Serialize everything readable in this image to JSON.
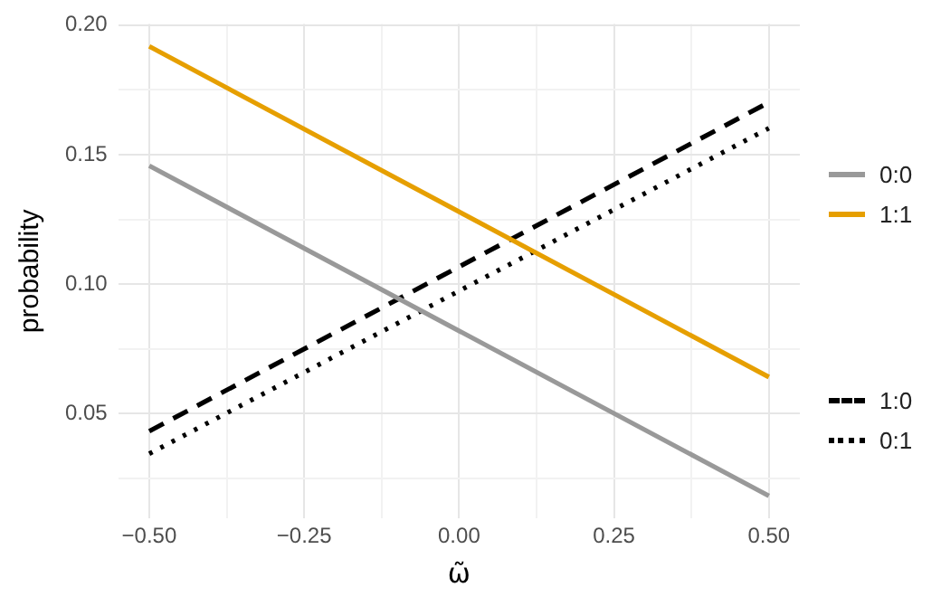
{
  "chart_data": {
    "type": "line",
    "xlabel": "ω̃",
    "ylabel": "probability",
    "xlim": [
      -0.55,
      0.55
    ],
    "ylim": [
      0.0095,
      0.2005
    ],
    "xticks": [
      {
        "value": -0.5,
        "label": "−0.50"
      },
      {
        "value": -0.375,
        "label": null
      },
      {
        "value": -0.25,
        "label": "−0.25"
      },
      {
        "value": -0.125,
        "label": null
      },
      {
        "value": 0,
        "label": "0.00"
      },
      {
        "value": 0.125,
        "label": null
      },
      {
        "value": 0.25,
        "label": "0.25"
      },
      {
        "value": 0.375,
        "label": null
      },
      {
        "value": 0.5,
        "label": "0.50"
      }
    ],
    "yticks": [
      {
        "value": 0.025,
        "label": null
      },
      {
        "value": 0.05,
        "label": "0.05"
      },
      {
        "value": 0.075,
        "label": null
      },
      {
        "value": 0.1,
        "label": "0.10"
      },
      {
        "value": 0.125,
        "label": null
      },
      {
        "value": 0.15,
        "label": "0.15"
      },
      {
        "value": 0.175,
        "label": null
      },
      {
        "value": 0.2,
        "label": "0.20"
      }
    ],
    "grid": true,
    "legend": "right",
    "marker": "none",
    "x": [
      -0.5,
      0.5
    ],
    "series": [
      {
        "name": "0:0",
        "color": "#999999",
        "line_style": "solid",
        "values": [
          0.1457,
          0.0182
        ]
      },
      {
        "name": "1:1",
        "color": "#e69f00",
        "line_style": "solid",
        "values": [
          0.1918,
          0.0641
        ]
      },
      {
        "name": "1:0",
        "color": "#000000",
        "line_style": "dashed",
        "values": [
          0.0432,
          0.1702
        ]
      },
      {
        "name": "0:1",
        "color": "#000000",
        "line_style": "dotted",
        "values": [
          0.0345,
          0.1602
        ]
      }
    ]
  }
}
